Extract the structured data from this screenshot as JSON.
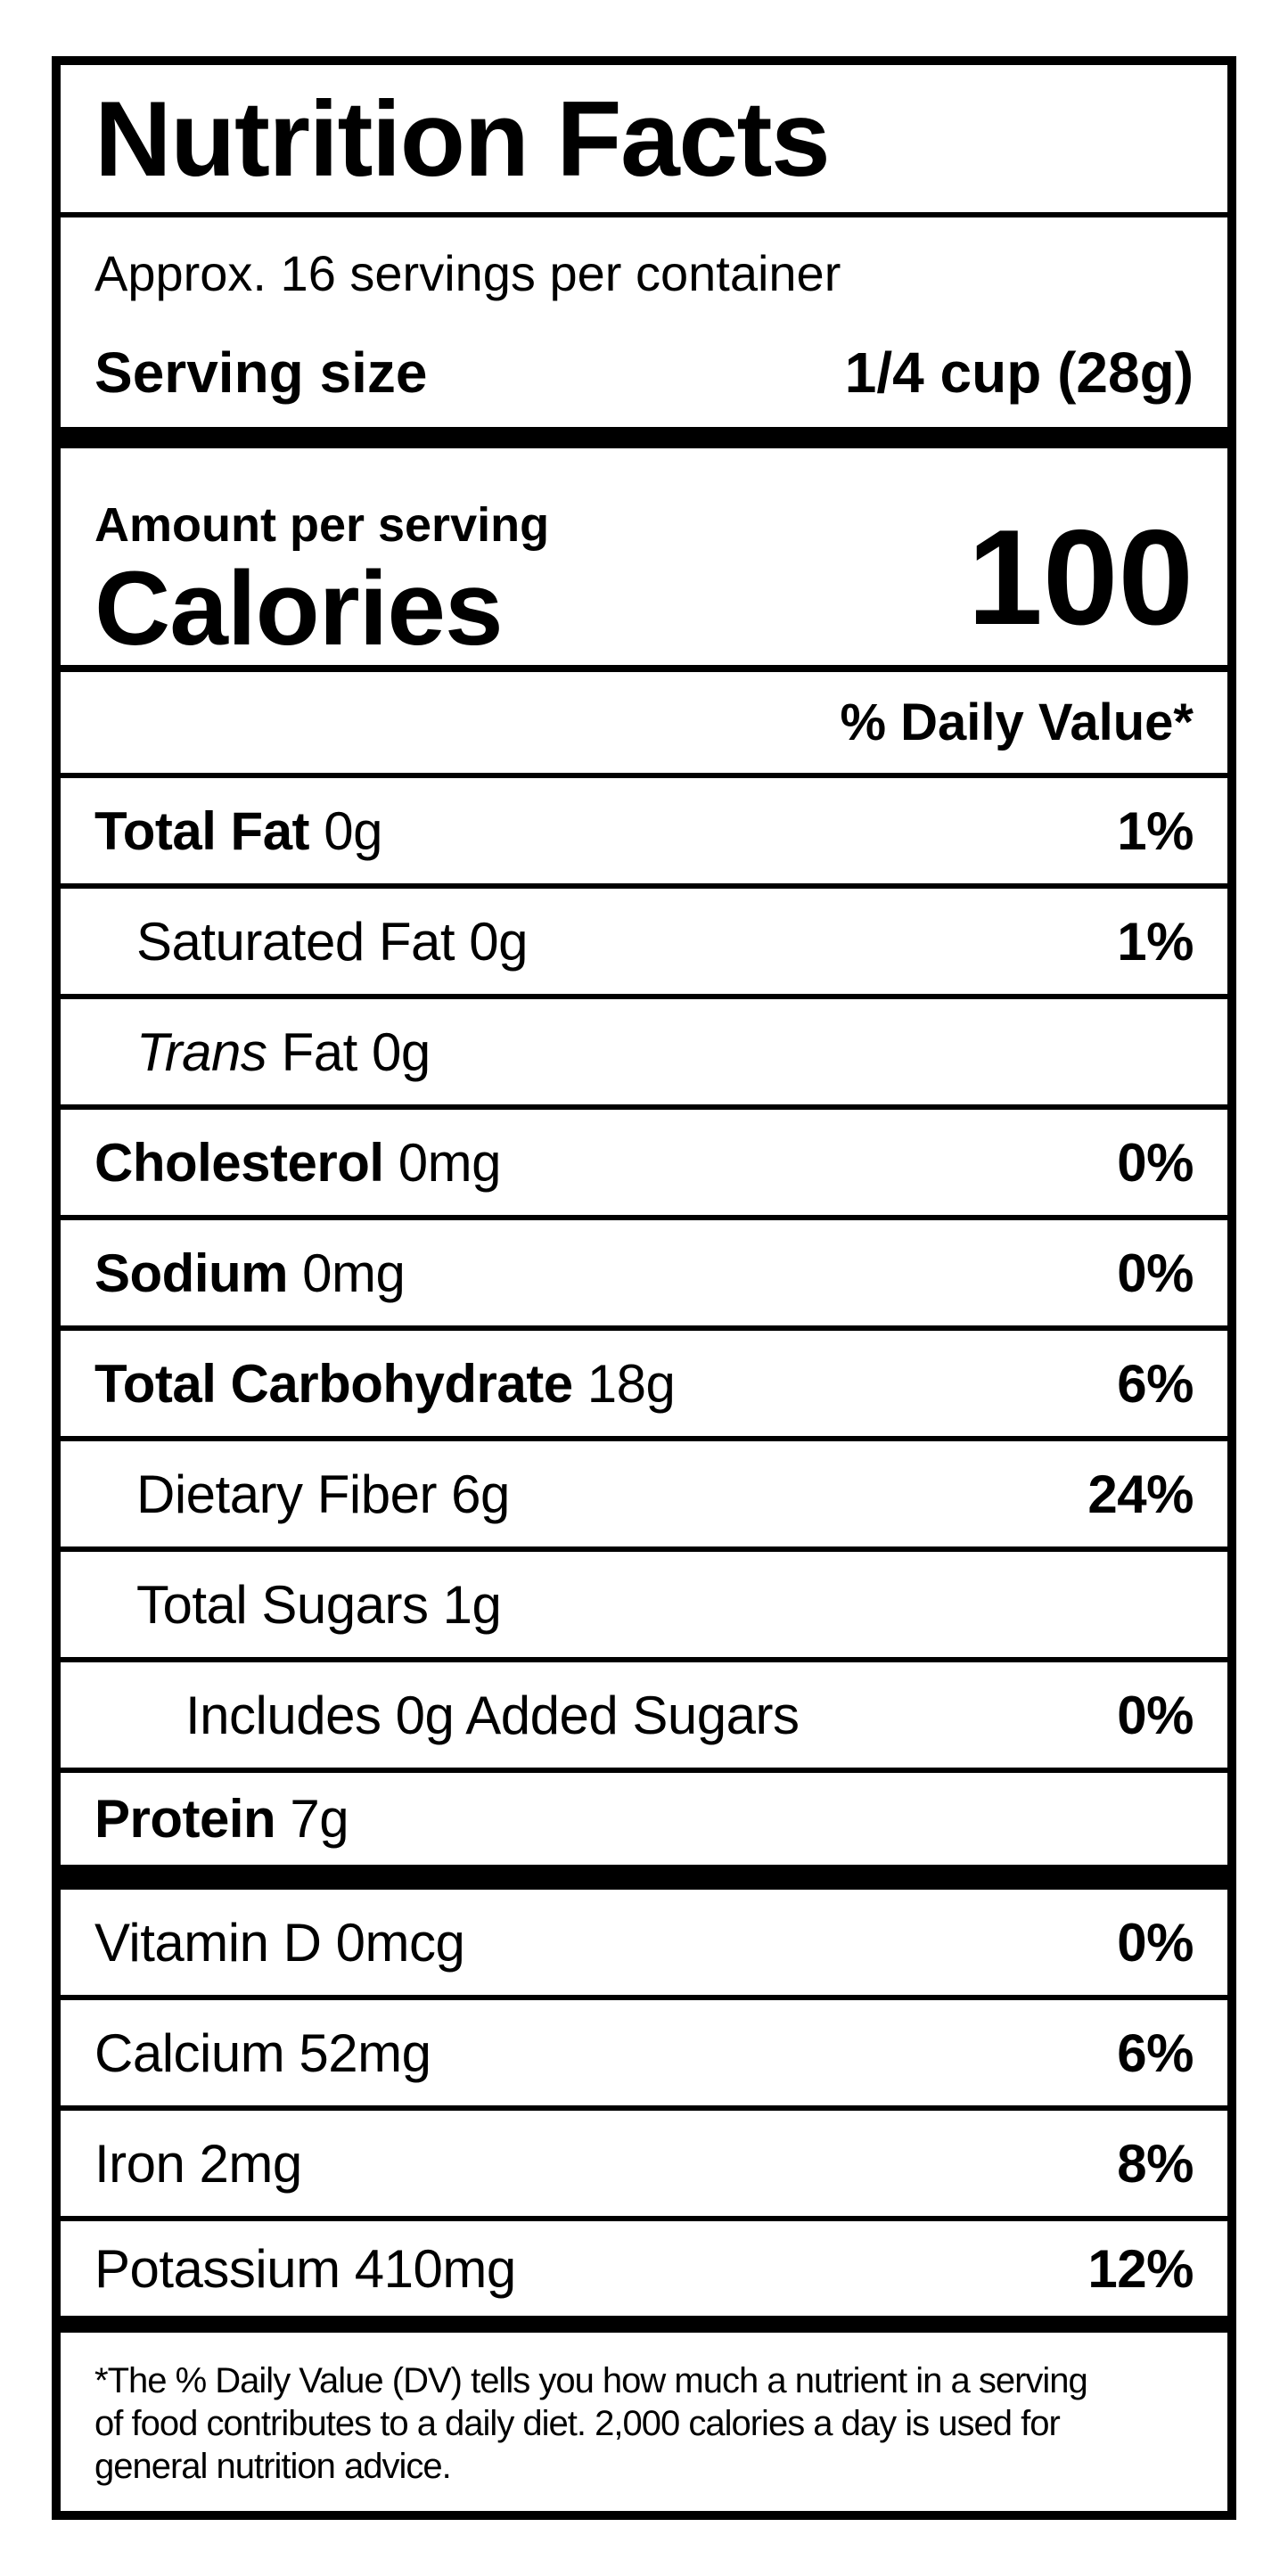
{
  "colors": {
    "text": "#000000",
    "background": "#ffffff",
    "border": "#000000"
  },
  "label": {
    "title": "Nutrition Facts",
    "servings_per_container": "Approx. 16 servings per container",
    "serving_size_label": "Serving size",
    "serving_size_value": "1/4 cup (28g)",
    "amount_per_serving_label": "Amount per serving",
    "calories_label": "Calories",
    "calories_value": "100",
    "daily_value_header": "% Daily Value*",
    "rows": [
      {
        "name": "Total Fat",
        "amount": "0g",
        "dv": "1%",
        "bold": true,
        "indent": 0
      },
      {
        "name": "Saturated Fat",
        "amount": "0g",
        "dv": "1%",
        "bold": false,
        "indent": 1
      },
      {
        "name_italic": "Trans",
        "name": "Fat",
        "amount": "0g",
        "dv": "",
        "bold": false,
        "indent": 1
      },
      {
        "name": "Cholesterol",
        "amount": "0mg",
        "dv": "0%",
        "bold": true,
        "indent": 0
      },
      {
        "name": "Sodium",
        "amount": "0mg",
        "dv": "0%",
        "bold": true,
        "indent": 0
      },
      {
        "name": "Total Carbohydrate",
        "amount": "18g",
        "dv": "6%",
        "bold": true,
        "indent": 0
      },
      {
        "name": "Dietary Fiber",
        "amount": "6g",
        "dv": "24%",
        "bold": false,
        "indent": 1
      },
      {
        "name": "Total Sugars",
        "amount": "1g",
        "dv": "",
        "bold": false,
        "indent": 1
      },
      {
        "name": "Includes 0g Added Sugars",
        "amount": "",
        "dv": "0%",
        "bold": false,
        "indent": 2
      },
      {
        "name": "Protein",
        "amount": "7g",
        "dv": "",
        "bold": true,
        "indent": 0,
        "thick_bottom": true
      },
      {
        "name": "Vitamin D",
        "amount": "0mcg",
        "dv": "0%",
        "bold": false,
        "indent": 0
      },
      {
        "name": "Calcium",
        "amount": "52mg",
        "dv": "6%",
        "bold": false,
        "indent": 0
      },
      {
        "name": "Iron",
        "amount": "2mg",
        "dv": "8%",
        "bold": false,
        "indent": 0
      },
      {
        "name": "Potassium",
        "amount": "410mg",
        "dv": "12%",
        "bold": false,
        "indent": 0,
        "last": true
      }
    ],
    "footnote": "*The % Daily Value (DV) tells you how much a nutrient in a serving\nof food contributes to a daily diet. 2,000 calories a day is used for\ngeneral nutrition advice."
  }
}
